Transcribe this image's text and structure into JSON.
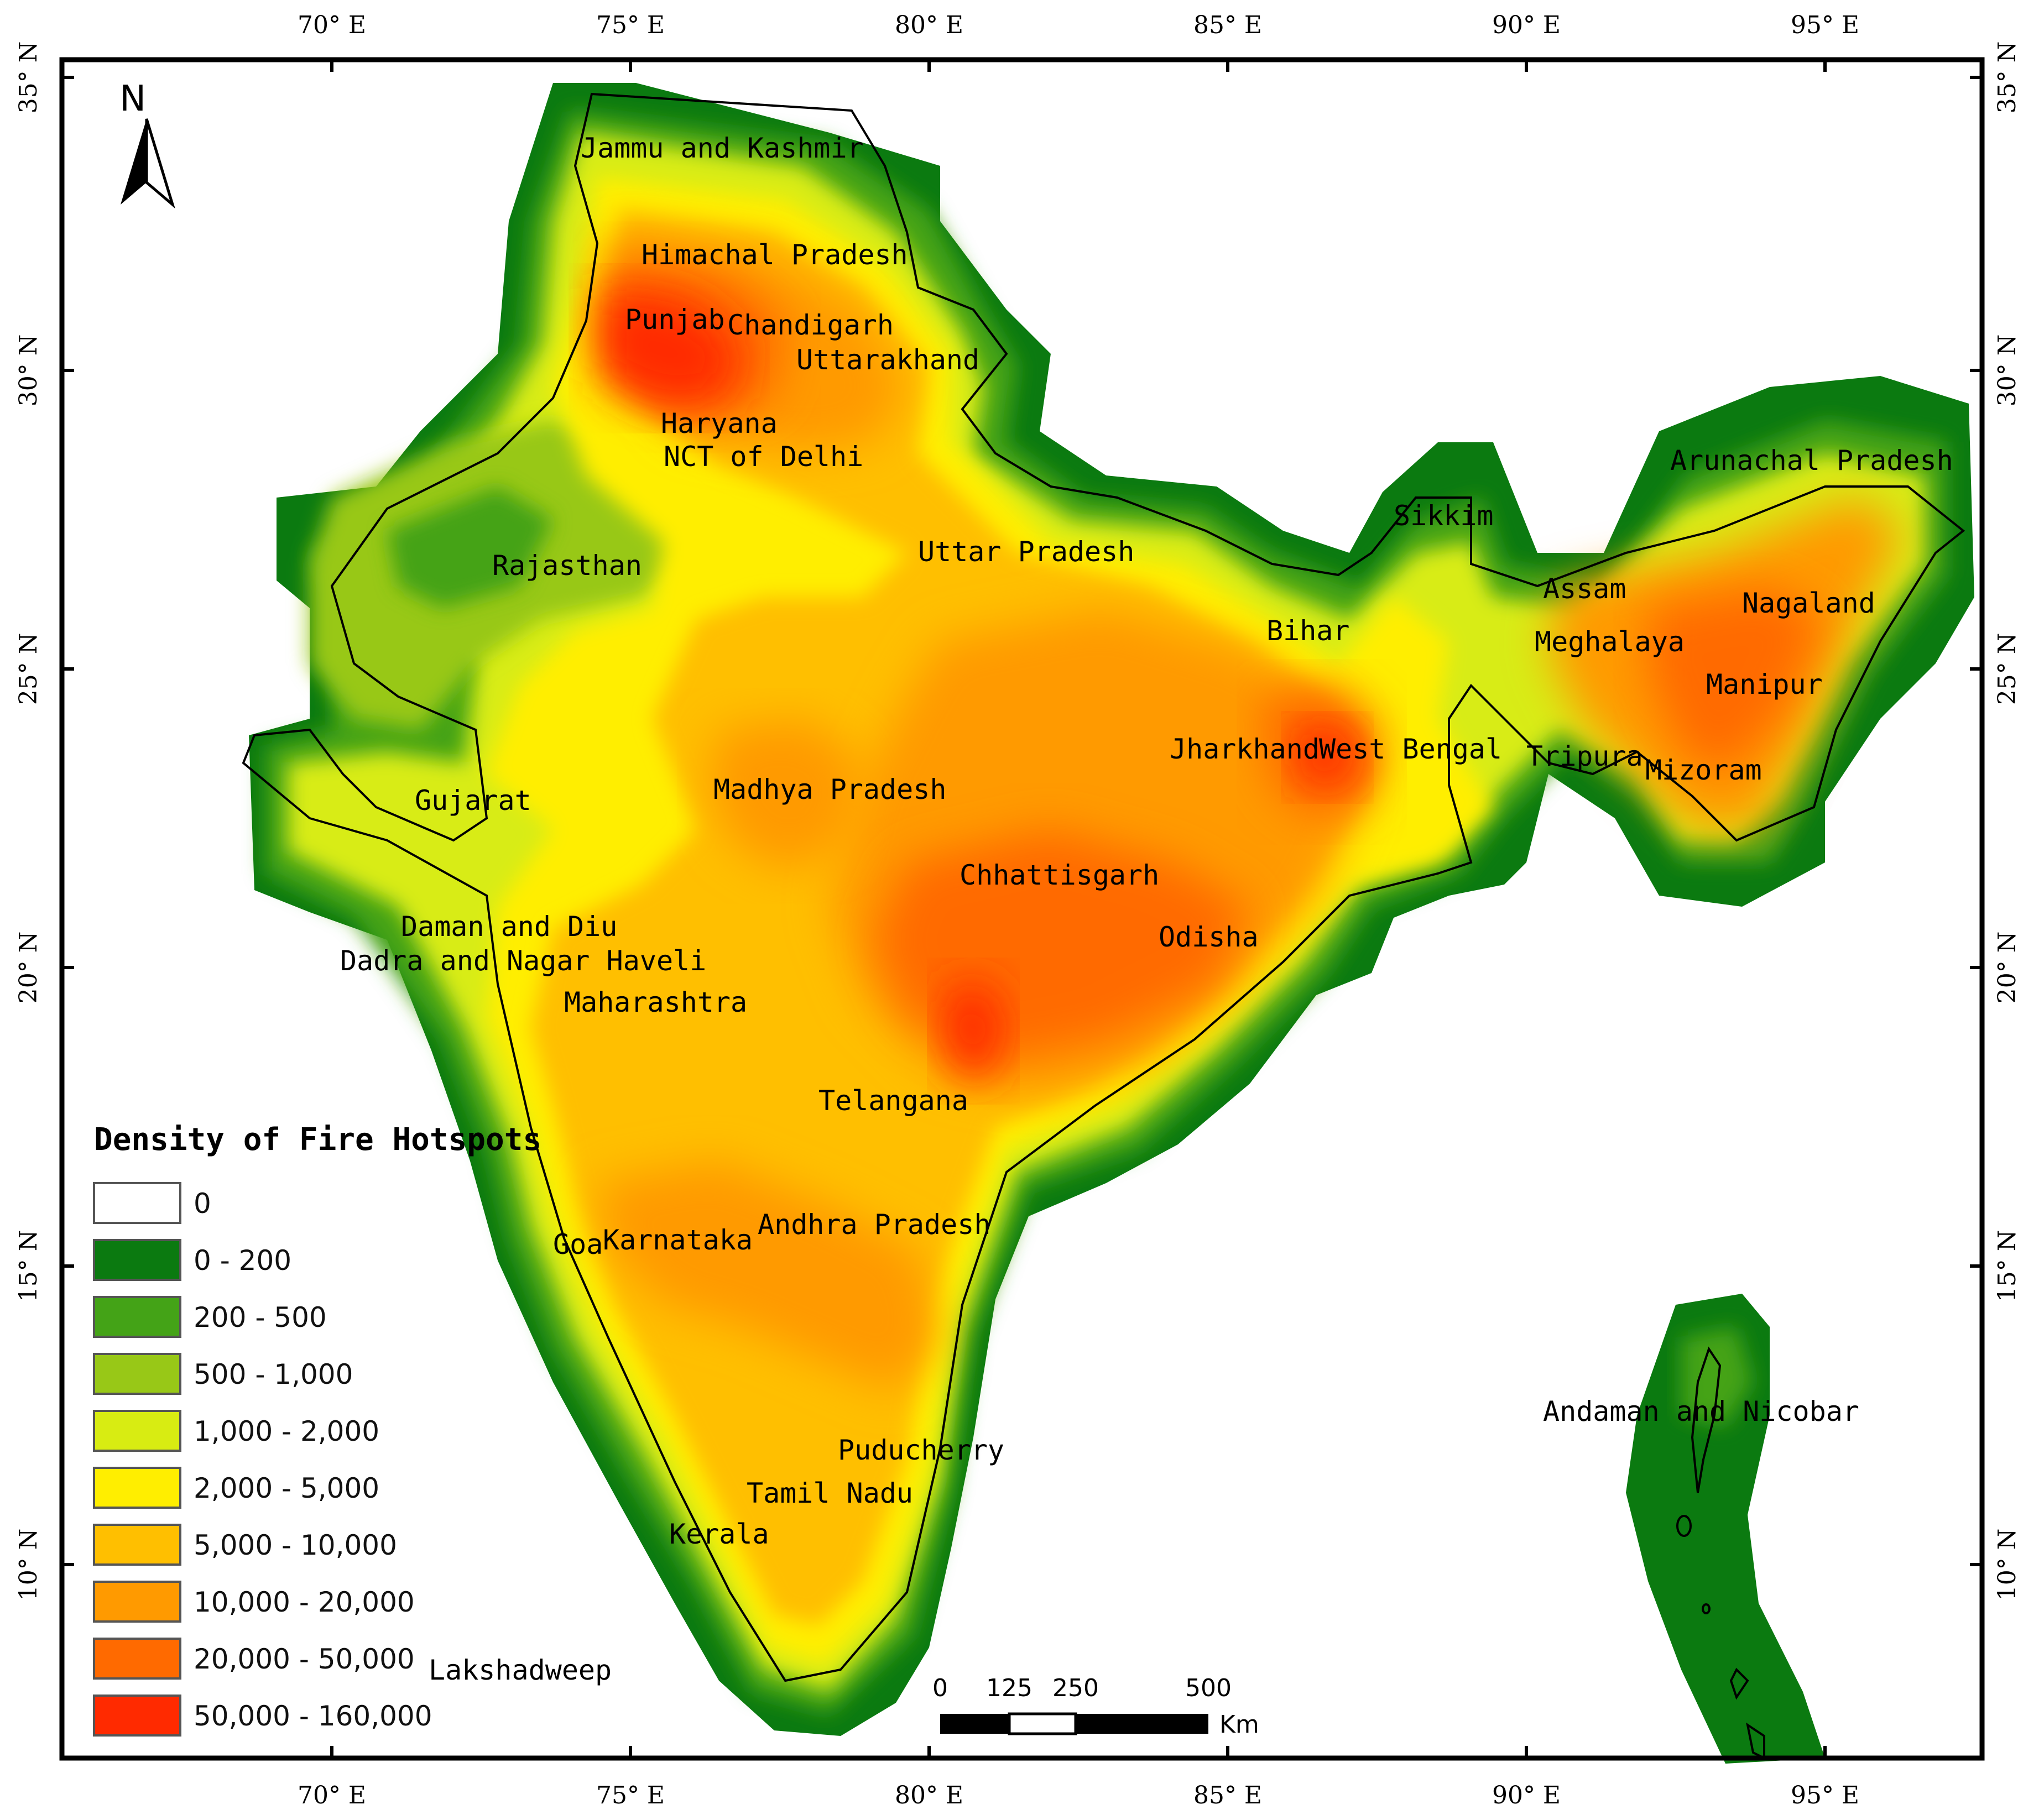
{
  "map": {
    "legend_title": "Density of Fire Hotspots",
    "legend": [
      {
        "label": "0",
        "color": "#ffffff"
      },
      {
        "label": "0 - 200",
        "color": "#0b7a10"
      },
      {
        "label": "200 - 500",
        "color": "#44a317"
      },
      {
        "label": "500 - 1,000",
        "color": "#98c817"
      },
      {
        "label": "1,000 - 2,000",
        "color": "#d8ec12"
      },
      {
        "label": "2,000 - 5,000",
        "color": "#ffee00"
      },
      {
        "label": "5,000 - 10,000",
        "color": "#ffbf00"
      },
      {
        "label": "10,000 - 20,000",
        "color": "#ff9a00"
      },
      {
        "label": "20,000 - 50,000",
        "color": "#ff6a00"
      },
      {
        "label": "50,000 - 160,000",
        "color": "#ff2a00"
      }
    ],
    "north_label": "N",
    "scale": {
      "ticks": [
        "0",
        "125",
        "250",
        "500"
      ],
      "unit": "Km"
    },
    "longitude_ticks": [
      "70° E",
      "75° E",
      "80° E",
      "85° E",
      "90° E",
      "95° E"
    ],
    "latitude_ticks": [
      "35° N",
      "30° N",
      "25° N",
      "20° N",
      "15° N",
      "10° N"
    ],
    "states": [
      "Jammu and Kashmir",
      "Himachal Pradesh",
      "Punjab",
      "Chandigarh",
      "Uttarakhand",
      "Haryana",
      "NCT of Delhi",
      "Rajasthan",
      "Uttar Pradesh",
      "Sikkim",
      "Arunachal Pradesh",
      "Assam",
      "Nagaland",
      "Bihar",
      "Meghalaya",
      "Manipur",
      "Jharkhand",
      "West Bengal",
      "Tripura",
      "Mizoram",
      "Gujarat",
      "Madhya Pradesh",
      "Chhattisgarh",
      "Odisha",
      "Daman and Diu",
      "Dadra and Nagar Haveli",
      "Maharashtra",
      "Telangana",
      "Goa",
      "Karnataka",
      "Andhra Pradesh",
      "Andaman and Nicobar",
      "Puducherry",
      "Tamil Nadu",
      "Kerala",
      "Lakshadweep"
    ]
  }
}
